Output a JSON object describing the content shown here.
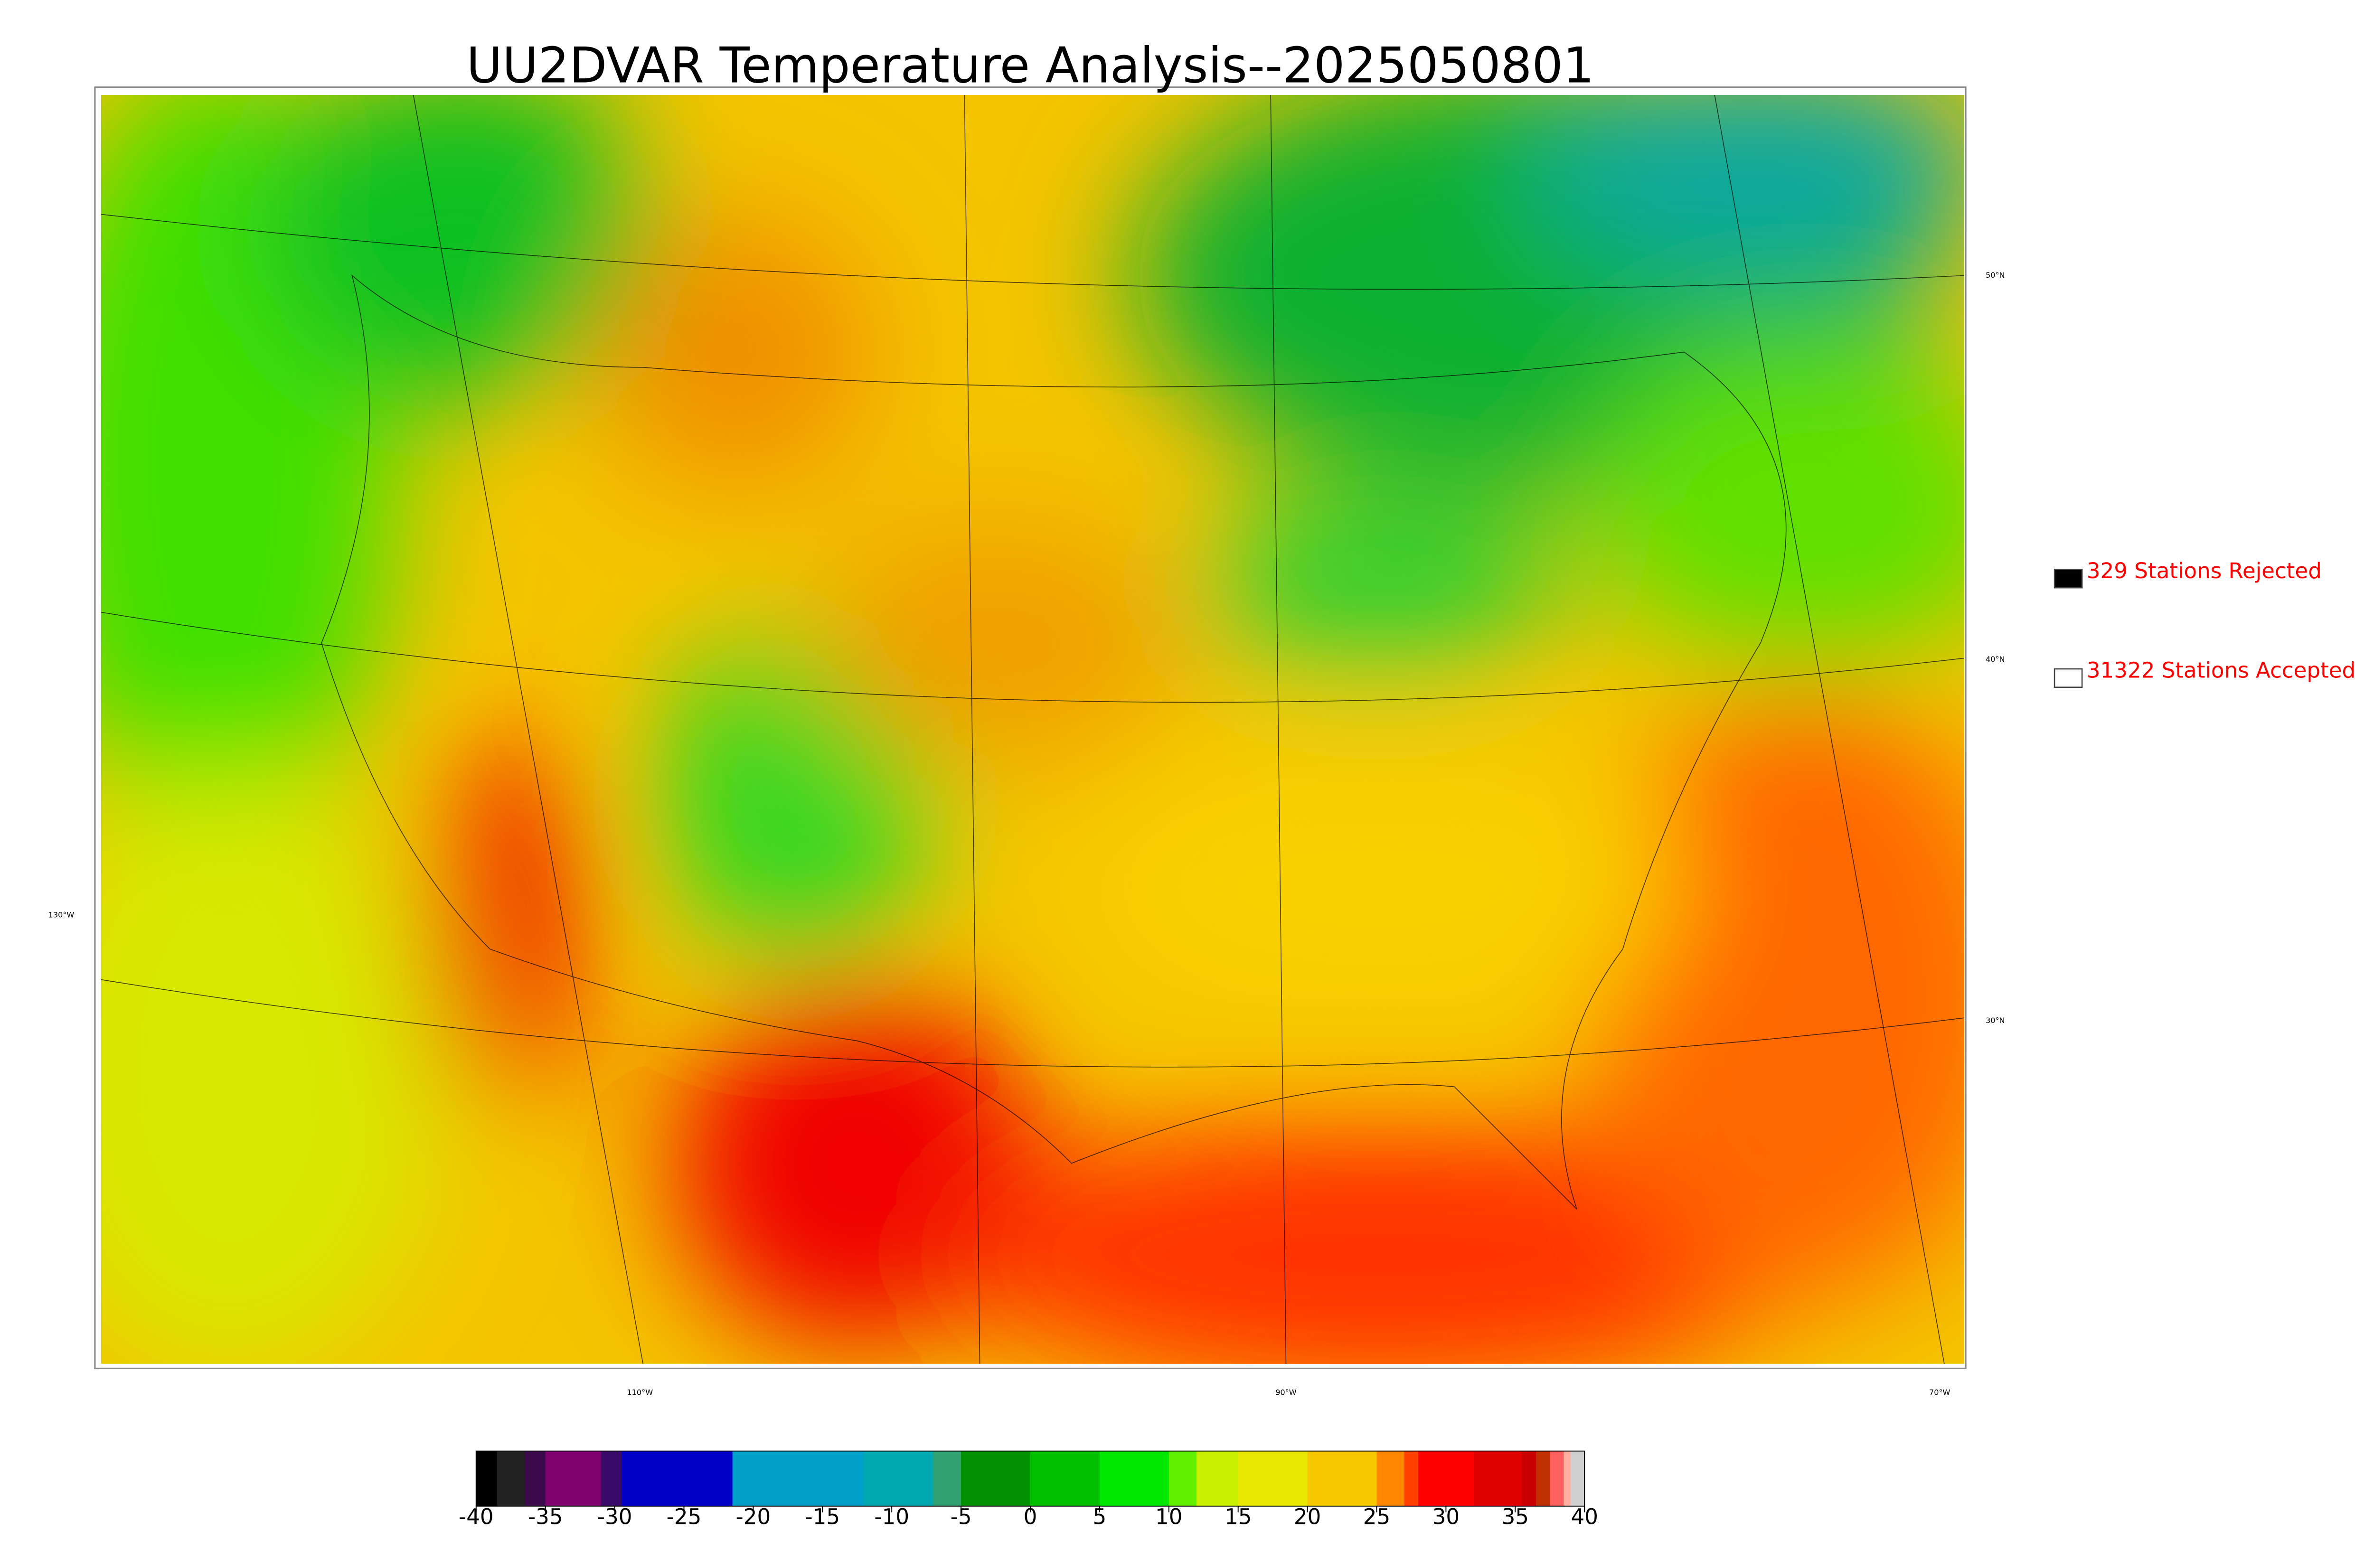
{
  "header": {
    "title": "UU2DVAR Temperature Analysis--2025050801"
  },
  "graticule": {
    "lat_labels": [
      "50°N",
      "40°N",
      "30°N"
    ],
    "lon_labels": [
      "130°W",
      "110°W",
      "90°W",
      "70°W"
    ]
  },
  "legend": [
    {
      "label": "329 Stations Rejected",
      "swatch": "#000000"
    },
    {
      "label": "31322 Stations Accepted",
      "swatch": "#ffffff"
    }
  ],
  "colorbar": {
    "lim": [
      -40,
      40
    ],
    "ticks": [
      -40,
      -35,
      -30,
      -25,
      -20,
      -15,
      -10,
      -5,
      0,
      5,
      10,
      15,
      20,
      25,
      30,
      35,
      40
    ],
    "stops": [
      {
        "value": -40,
        "color": "#000000"
      },
      {
        "value": -38.5,
        "color": "#222222"
      },
      {
        "value": -36.5,
        "color": "#3a0a4a"
      },
      {
        "value": -35,
        "color": "#800070"
      },
      {
        "value": -31,
        "color": "#3a0a6a"
      },
      {
        "value": -29.5,
        "color": "#0000c8"
      },
      {
        "value": -21.5,
        "color": "#00a0c8"
      },
      {
        "value": -12,
        "color": "#00a8b0"
      },
      {
        "value": -7,
        "color": "#30a070"
      },
      {
        "value": -5,
        "color": "#009000"
      },
      {
        "value": 0,
        "color": "#00c000"
      },
      {
        "value": 5,
        "color": "#00e800"
      },
      {
        "value": 10,
        "color": "#60f000"
      },
      {
        "value": 12,
        "color": "#c8f000"
      },
      {
        "value": 15,
        "color": "#e8e800"
      },
      {
        "value": 20,
        "color": "#f8c800"
      },
      {
        "value": 25,
        "color": "#ff8800"
      },
      {
        "value": 27,
        "color": "#ff4000"
      },
      {
        "value": 28,
        "color": "#ff0000"
      },
      {
        "value": 32,
        "color": "#e00000"
      },
      {
        "value": 35.5,
        "color": "#c80000"
      },
      {
        "value": 36.5,
        "color": "#c03000"
      },
      {
        "value": 37.5,
        "color": "#ff6060"
      },
      {
        "value": 38.5,
        "color": "#ffb0a0"
      },
      {
        "value": 39,
        "color": "#d0d0d0"
      }
    ]
  }
}
